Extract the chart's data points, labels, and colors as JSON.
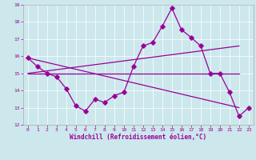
{
  "xlabel": "Windchill (Refroidissement éolien,°C)",
  "xlim": [
    -0.5,
    23.5
  ],
  "ylim": [
    12,
    19
  ],
  "yticks": [
    12,
    13,
    14,
    15,
    16,
    17,
    18,
    19
  ],
  "xticks": [
    0,
    1,
    2,
    3,
    4,
    5,
    6,
    7,
    8,
    9,
    10,
    11,
    12,
    13,
    14,
    15,
    16,
    17,
    18,
    19,
    20,
    21,
    22,
    23
  ],
  "bg_color": "#cce8ec",
  "line_color": "#990099",
  "line1_x": [
    0,
    1,
    2,
    3,
    4,
    5,
    6,
    7,
    8,
    9,
    10,
    11,
    12,
    13,
    14,
    15,
    16,
    17,
    18,
    19,
    20,
    21,
    22,
    23
  ],
  "line1_y": [
    15.9,
    15.4,
    15.0,
    14.8,
    14.1,
    13.1,
    12.8,
    13.5,
    13.3,
    13.7,
    13.9,
    15.4,
    16.6,
    16.8,
    17.75,
    18.8,
    17.55,
    17.1,
    16.6,
    15.0,
    15.0,
    13.9,
    12.5,
    13.0
  ],
  "line2_x": [
    0,
    22
  ],
  "line2_y": [
    15.0,
    15.0
  ],
  "line3_x": [
    0,
    22
  ],
  "line3_y": [
    15.9,
    13.0
  ],
  "line4_x": [
    0,
    22
  ],
  "line4_y": [
    15.0,
    16.6
  ]
}
